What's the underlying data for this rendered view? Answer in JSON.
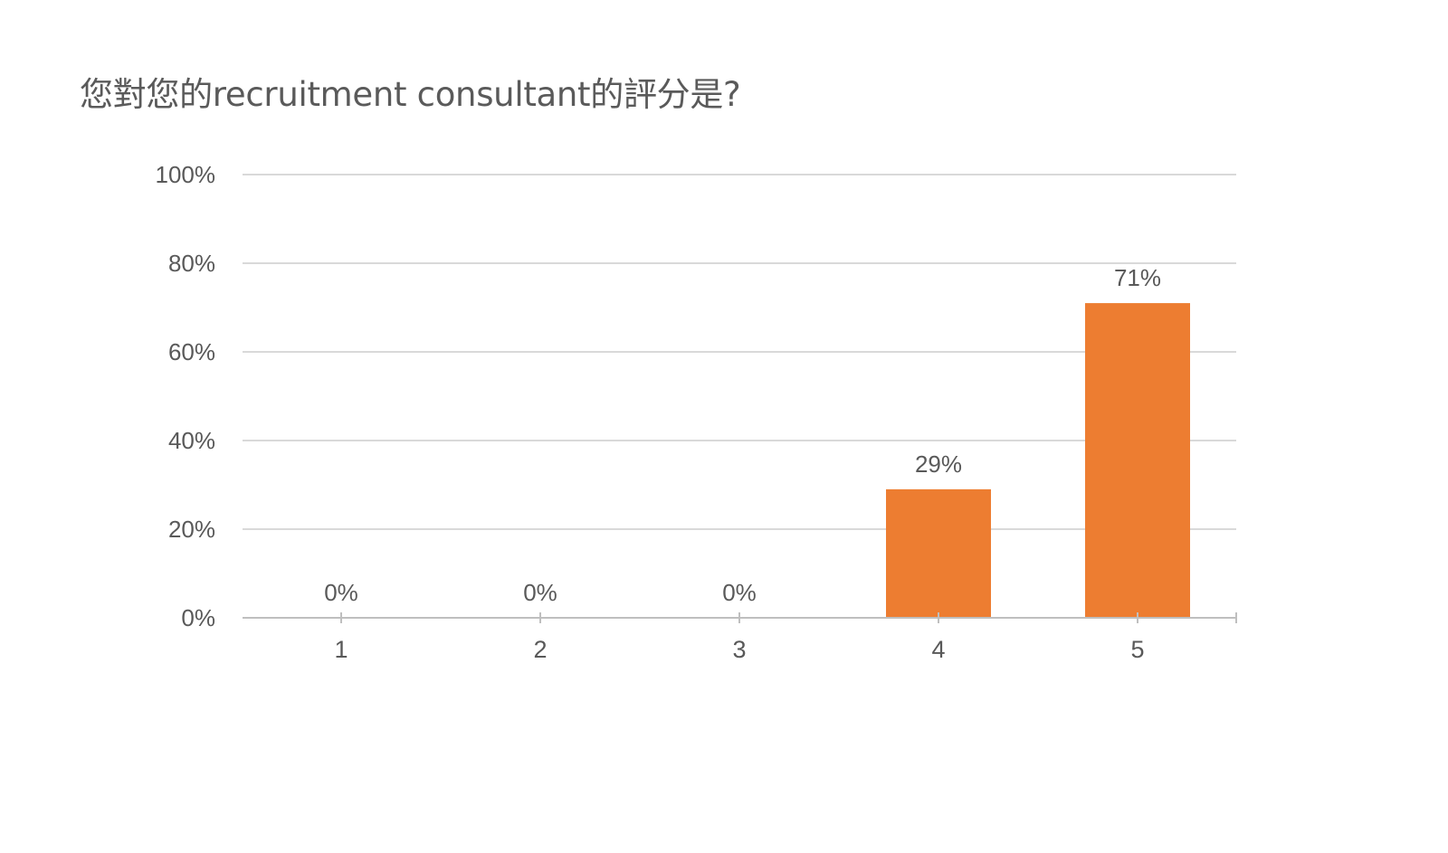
{
  "question": {
    "title": "您對您的recruitment consultant的評分是?"
  },
  "colors": {
    "bar": "#ED7D31",
    "grid": "#D9D9D9",
    "axis": "#BFBFBF",
    "text": "#595959"
  },
  "chart_data": {
    "type": "bar",
    "title": "",
    "xlabel": "",
    "ylabel": "",
    "categories": [
      "1",
      "2",
      "3",
      "4",
      "5"
    ],
    "values": [
      0,
      0,
      0,
      29,
      71
    ],
    "value_labels": [
      "0%",
      "0%",
      "0%",
      "29%",
      "71%"
    ],
    "ylim": [
      0,
      100
    ],
    "yticks": [
      0,
      20,
      40,
      60,
      80,
      100
    ],
    "ytick_labels": [
      "0%",
      "20%",
      "40%",
      "60%",
      "80%",
      "100%"
    ],
    "grid": true,
    "legend": "none"
  }
}
